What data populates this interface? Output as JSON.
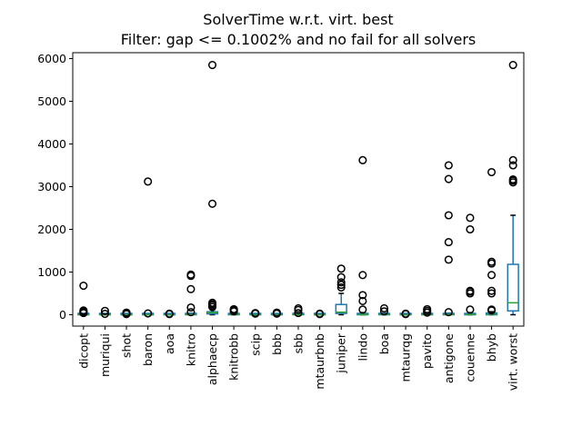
{
  "chart_data": {
    "type": "box",
    "title": "SolverTime w.r.t. virt. best",
    "subtitle": "Filter: gap <= 0.1002% and no fail for all solvers",
    "xlabel": "",
    "ylabel": "",
    "ylim": [
      -300,
      6150
    ],
    "yticks": [
      0,
      1000,
      2000,
      3000,
      4000,
      5000,
      6000
    ],
    "grid": false,
    "colors": {
      "box": "#1f77b4",
      "median": "#2ca02c",
      "outlier": "#000000"
    },
    "categories": [
      "dicopt",
      "muriqui",
      "shot",
      "baron",
      "aoa",
      "knitro",
      "alphaecp",
      "knitrobb",
      "scip",
      "bbb",
      "sbb",
      "mtaurbnb",
      "juniper",
      "lindo",
      "boa",
      "mtaurqg",
      "pavito",
      "antigone",
      "couenne",
      "bhyb",
      "virt. worst"
    ],
    "boxes": [
      {
        "q1": 0,
        "median": 2,
        "q3": 8,
        "whisker_low": 0,
        "whisker_high": 18,
        "outliers": [
          40,
          60,
          80,
          100,
          680
        ]
      },
      {
        "q1": 0,
        "median": 1,
        "q3": 3,
        "whisker_low": 0,
        "whisker_high": 8,
        "outliers": [
          20,
          90
        ]
      },
      {
        "q1": 0,
        "median": 1,
        "q3": 4,
        "whisker_low": 0,
        "whisker_high": 10,
        "outliers": [
          15,
          30,
          50
        ]
      },
      {
        "q1": 0,
        "median": 2,
        "q3": 6,
        "whisker_low": 0,
        "whisker_high": 15,
        "outliers": [
          30,
          3120
        ]
      },
      {
        "q1": 0,
        "median": 1,
        "q3": 3,
        "whisker_low": 0,
        "whisker_high": 8,
        "outliers": [
          15,
          25
        ]
      },
      {
        "q1": 0,
        "median": 5,
        "q3": 15,
        "whisker_low": 0,
        "whisker_high": 35,
        "outliers": [
          60,
          170,
          600,
          910,
          940
        ]
      },
      {
        "q1": 20,
        "median": 50,
        "q3": 70,
        "whisker_low": 0,
        "whisker_high": 120,
        "outliers": [
          180,
          220,
          250,
          280,
          2600,
          5850
        ]
      },
      {
        "q1": 0,
        "median": 5,
        "q3": 20,
        "whisker_low": 0,
        "whisker_high": 40,
        "outliers": [
          80,
          110,
          130
        ]
      },
      {
        "q1": 0,
        "median": 2,
        "q3": 8,
        "whisker_low": 0,
        "whisker_high": 15,
        "outliers": [
          25,
          40
        ]
      },
      {
        "q1": 0,
        "median": 2,
        "q3": 8,
        "whisker_low": 0,
        "whisker_high": 15,
        "outliers": [
          25,
          50
        ]
      },
      {
        "q1": 0,
        "median": 3,
        "q3": 10,
        "whisker_low": 0,
        "whisker_high": 20,
        "outliers": [
          40,
          110,
          150
        ]
      },
      {
        "q1": 0,
        "median": 1,
        "q3": 3,
        "whisker_low": 0,
        "whisker_high": 8,
        "outliers": [
          15,
          25
        ]
      },
      {
        "q1": 30,
        "median": 60,
        "q3": 240,
        "whisker_low": 0,
        "whisker_high": 500,
        "outliers": [
          640,
          700,
          760,
          880,
          1080
        ]
      },
      {
        "q1": 0,
        "median": 5,
        "q3": 25,
        "whisker_low": 0,
        "whisker_high": 50,
        "outliers": [
          120,
          320,
          460,
          930,
          3620
        ]
      },
      {
        "q1": 0,
        "median": 5,
        "q3": 20,
        "whisker_low": 0,
        "whisker_high": 40,
        "outliers": [
          80,
          150
        ]
      },
      {
        "q1": 0,
        "median": 1,
        "q3": 3,
        "whisker_low": 0,
        "whisker_high": 8,
        "outliers": [
          15,
          25
        ]
      },
      {
        "q1": 0,
        "median": 3,
        "q3": 10,
        "whisker_low": 0,
        "whisker_high": 25,
        "outliers": [
          50,
          90,
          130
        ]
      },
      {
        "q1": 0,
        "median": 5,
        "q3": 15,
        "whisker_low": 0,
        "whisker_high": 35,
        "outliers": [
          60,
          1290,
          1700,
          2330,
          3180,
          3500
        ]
      },
      {
        "q1": 0,
        "median": 5,
        "q3": 20,
        "whisker_low": 0,
        "whisker_high": 50,
        "outliers": [
          120,
          500,
          540,
          560,
          2000,
          2270
        ]
      },
      {
        "q1": 0,
        "median": 10,
        "q3": 40,
        "whisker_low": 0,
        "whisker_high": 70,
        "outliers": [
          100,
          120,
          500,
          560,
          930,
          1200,
          1240,
          3340
        ]
      },
      {
        "q1": 90,
        "median": 280,
        "q3": 1180,
        "whisker_low": 0,
        "whisker_high": 2330,
        "outliers": [
          3100,
          3140,
          3170,
          3500,
          3620,
          5850
        ]
      }
    ]
  }
}
